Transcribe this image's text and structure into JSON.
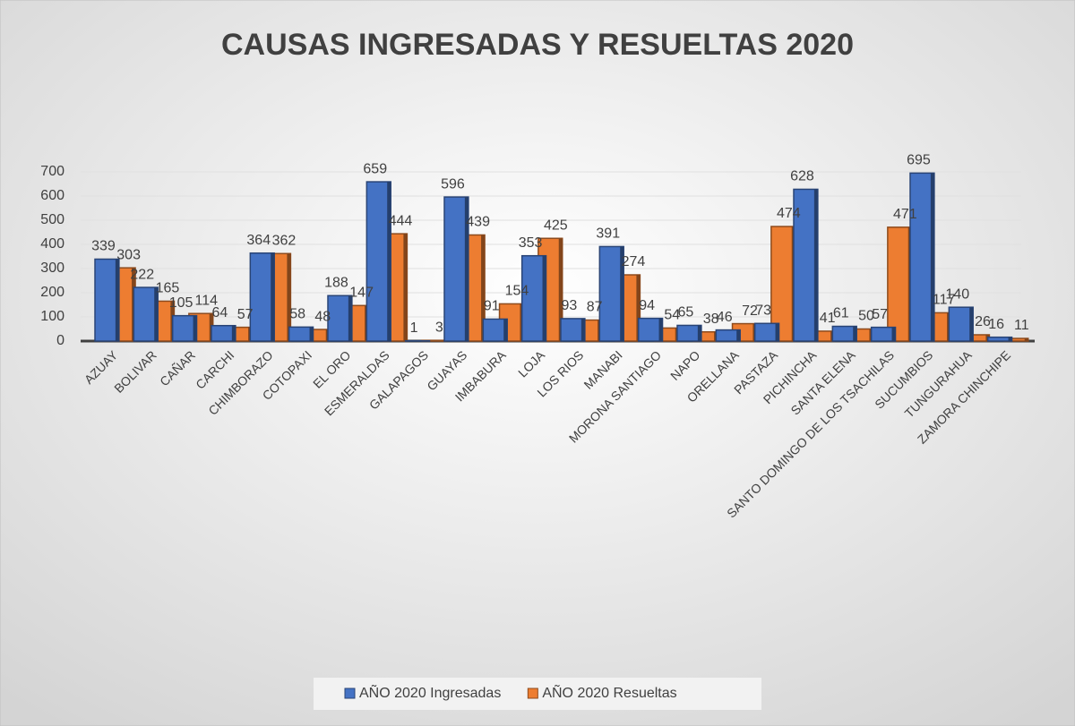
{
  "chart_data": {
    "type": "bar",
    "title": "CAUSAS INGRESADAS Y RESUELTAS 2020",
    "categories": [
      "AZUAY",
      "BOLIVAR",
      "CAÑAR",
      "CARCHI",
      "CHIMBORAZO",
      "COTOPAXI",
      "EL ORO",
      "ESMERALDAS",
      "GALAPAGOS",
      "GUAYAS",
      "IMBABURA",
      "LOJA",
      "LOS RIOS",
      "MANABI",
      "MORONA SANTIAGO",
      "NAPO",
      "ORELLANA",
      "PASTAZA",
      "PICHINCHA",
      "SANTA ELENA",
      "SANTO DOMINGO DE LOS TSACHILAS",
      "SUCUMBIOS",
      "TUNGURAHUA",
      "ZAMORA CHINCHIPE"
    ],
    "series": [
      {
        "name": "AÑO 2020 Ingresadas",
        "color": "#4472c4",
        "values": [
          339,
          222,
          105,
          64,
          364,
          58,
          188,
          659,
          1,
          596,
          91,
          353,
          93,
          391,
          94,
          65,
          46,
          73,
          628,
          61,
          57,
          695,
          140,
          16
        ]
      },
      {
        "name": "AÑO 2020 Resueltas",
        "color": "#ed7d31",
        "values": [
          303,
          165,
          114,
          57,
          362,
          48,
          147,
          444,
          3,
          439,
          154,
          425,
          87,
          274,
          54,
          38,
          72,
          474,
          41,
          50,
          471,
          117,
          26,
          11
        ]
      }
    ],
    "ylim": [
      0,
      700
    ],
    "yticks": [
      0,
      100,
      200,
      300,
      400,
      500,
      600,
      700
    ],
    "grid": true,
    "legend": "bottom"
  }
}
